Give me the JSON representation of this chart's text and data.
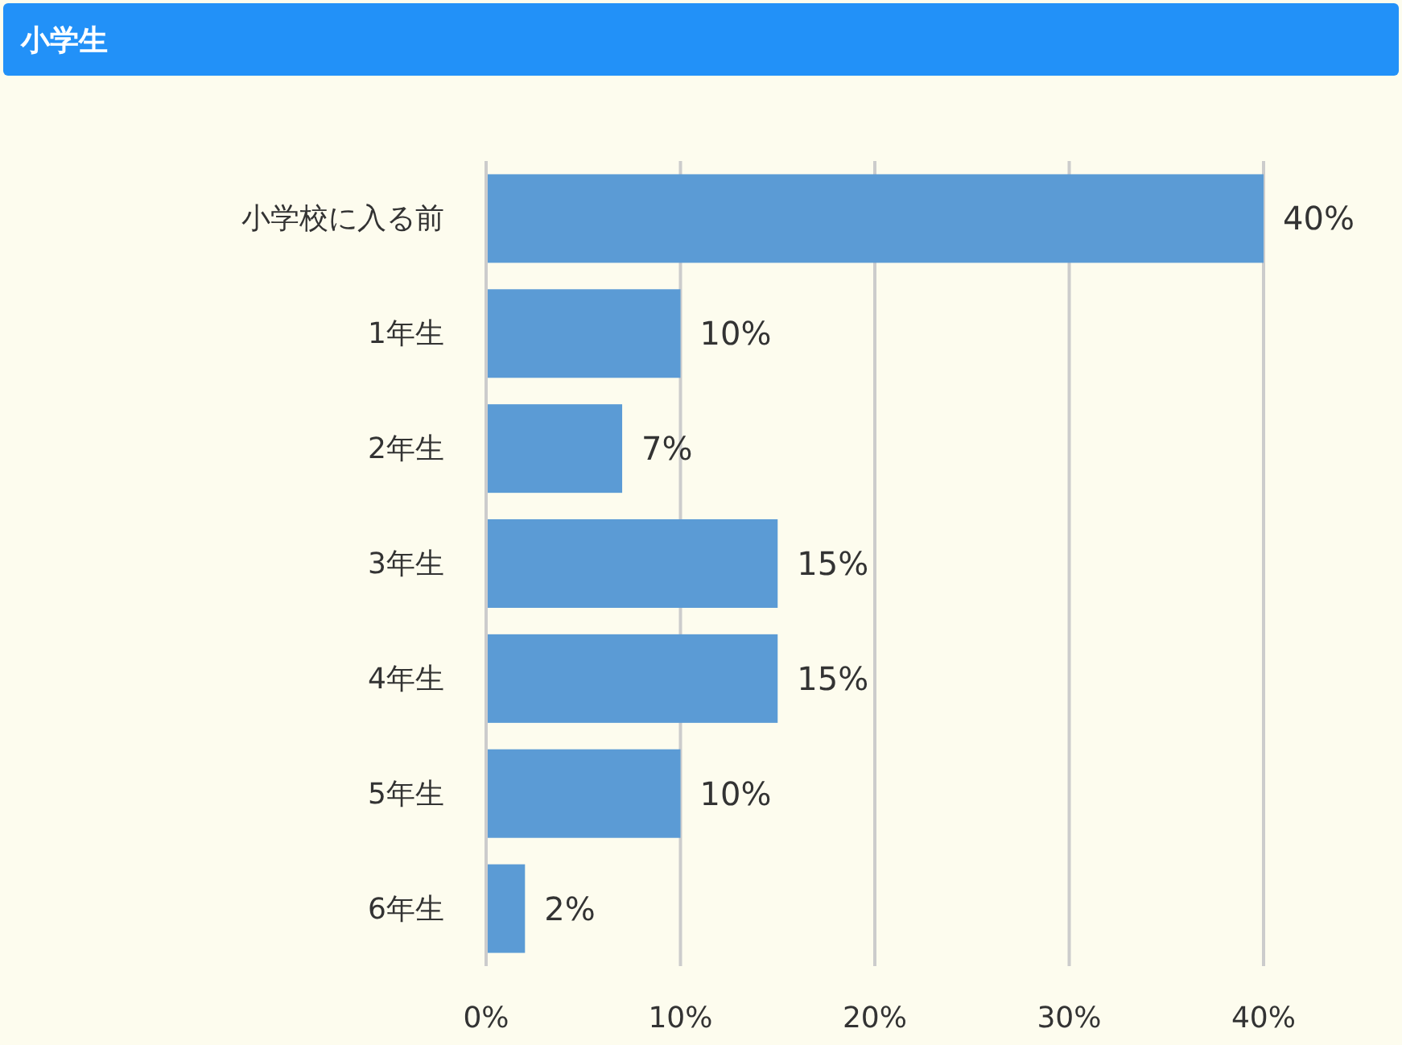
{
  "chart_data": {
    "type": "bar",
    "orientation": "horizontal",
    "title": "小学生",
    "categories": [
      "小学校に入る前",
      "1年生",
      "2年生",
      "3年生",
      "4年生",
      "5年生",
      "6年生"
    ],
    "values": [
      40,
      10,
      7,
      15,
      15,
      10,
      2
    ],
    "value_labels": [
      "40%",
      "10%",
      "7%",
      "15%",
      "15%",
      "10%",
      "2%"
    ],
    "color": "#5b9bd5",
    "xlim": [
      0,
      40
    ],
    "xticks": [
      {
        "value": 0,
        "label": "0%"
      },
      {
        "value": 10,
        "label": "10%"
      },
      {
        "value": 20,
        "label": "20%"
      },
      {
        "value": 30,
        "label": "30%"
      },
      {
        "value": 40,
        "label": "40%"
      }
    ],
    "grid": "x"
  }
}
